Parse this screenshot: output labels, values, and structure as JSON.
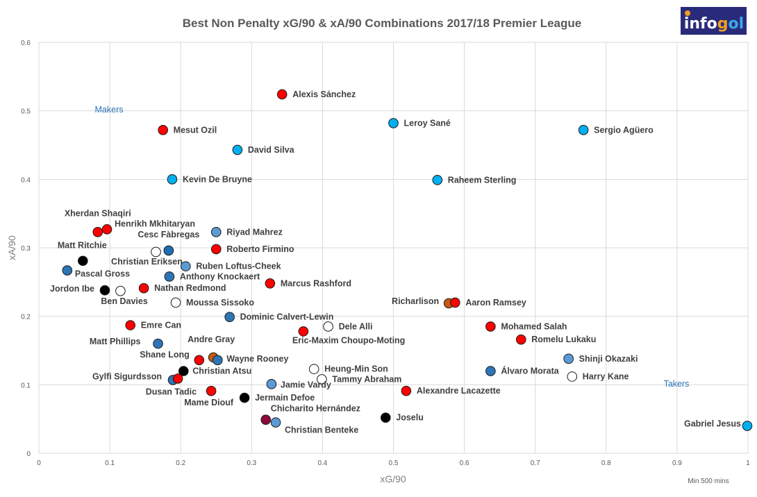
{
  "logo": {
    "text": "infogol",
    "bg": "#2a2a7a"
  },
  "chart_data": {
    "type": "scatter",
    "title": "Best Non Penalty xG/90 & xA/90 Combinations 2017/18 Premier League",
    "xlabel": "xG/90",
    "ylabel": "xA/90",
    "xlim": [
      0,
      1
    ],
    "ylim": [
      0,
      0.6
    ],
    "xticks": [
      "0",
      "0.1",
      "0.2",
      "0.3",
      "0.4",
      "0.5",
      "0.6",
      "0.7",
      "0.8",
      "0.9",
      "1"
    ],
    "yticks": [
      "0",
      "0.1",
      "0.2",
      "0.3",
      "0.4",
      "0.5",
      "0.6"
    ],
    "grid": true,
    "annotations": {
      "makers": "Makers",
      "takers": "Takers",
      "note": "Min 500 mins"
    },
    "points": [
      {
        "name": "Alexis Sánchez",
        "x": 0.343,
        "y": 0.524,
        "color": "#ff0000"
      },
      {
        "name": "Leroy Sané",
        "x": 0.5,
        "y": 0.482,
        "color": "#00b0f0"
      },
      {
        "name": "Sergio Agüero",
        "x": 0.768,
        "y": 0.472,
        "color": "#00b0f0"
      },
      {
        "name": "Mesut Ozil",
        "x": 0.175,
        "y": 0.472,
        "color": "#ff0000"
      },
      {
        "name": "David Silva",
        "x": 0.28,
        "y": 0.443,
        "color": "#00b0f0"
      },
      {
        "name": "Kevin De Bruyne",
        "x": 0.188,
        "y": 0.4,
        "color": "#00b0f0"
      },
      {
        "name": "Raheem Sterling",
        "x": 0.562,
        "y": 0.399,
        "color": "#00b0f0"
      },
      {
        "name": "Xherdan Shaqiri",
        "x": 0.083,
        "y": 0.323,
        "color": "#ff0000"
      },
      {
        "name": "Henrikh Mkhitaryan",
        "x": 0.096,
        "y": 0.327,
        "color": "#ff0000"
      },
      {
        "name": "Riyad Mahrez",
        "x": 0.25,
        "y": 0.323,
        "color": "#5b9bd5"
      },
      {
        "name": "Matt Ritchie",
        "x": 0.062,
        "y": 0.281,
        "color": "#000000"
      },
      {
        "name": "Cesc Fàbregas",
        "x": 0.183,
        "y": 0.296,
        "color": "#1f6cb5"
      },
      {
        "name": "Christian Eriksen",
        "x": 0.165,
        "y": 0.294,
        "color": "#ffffff"
      },
      {
        "name": "Roberto Firmino",
        "x": 0.25,
        "y": 0.298,
        "color": "#ff0000"
      },
      {
        "name": "Ruben Loftus-Cheek",
        "x": 0.207,
        "y": 0.273,
        "color": "#5b9bd5"
      },
      {
        "name": "Pascal Gross",
        "x": 0.04,
        "y": 0.267,
        "color": "#2e75b6"
      },
      {
        "name": "Anthony Knockaert",
        "x": 0.184,
        "y": 0.258,
        "color": "#2e75b6"
      },
      {
        "name": "Marcus Rashford",
        "x": 0.326,
        "y": 0.248,
        "color": "#ff0000"
      },
      {
        "name": "Jordon Ibe",
        "x": 0.093,
        "y": 0.238,
        "color": "#000000"
      },
      {
        "name": "Ben Davies",
        "x": 0.115,
        "y": 0.237,
        "color": "#ffffff"
      },
      {
        "name": "Nathan Redmond",
        "x": 0.148,
        "y": 0.241,
        "color": "#ff0000"
      },
      {
        "name": "Moussa Sissoko",
        "x": 0.193,
        "y": 0.22,
        "color": "#ffffff"
      },
      {
        "name": "Richarlison",
        "x": 0.578,
        "y": 0.219,
        "color": "#c55a11"
      },
      {
        "name": "Aaron Ramsey",
        "x": 0.587,
        "y": 0.22,
        "color": "#ff0000"
      },
      {
        "name": "Dominic Calvert-Lewin",
        "x": 0.269,
        "y": 0.199,
        "color": "#2e75b6"
      },
      {
        "name": "Emre Can",
        "x": 0.129,
        "y": 0.187,
        "color": "#ff0000"
      },
      {
        "name": "Dele Alli",
        "x": 0.408,
        "y": 0.185,
        "color": "#ffffff"
      },
      {
        "name": "Mohamed Salah",
        "x": 0.637,
        "y": 0.185,
        "color": "#ff0000"
      },
      {
        "name": "Eric-Maxim Choupo-Moting",
        "x": 0.373,
        "y": 0.178,
        "color": "#ff0000"
      },
      {
        "name": "Romelu Lukaku",
        "x": 0.68,
        "y": 0.166,
        "color": "#ff0000"
      },
      {
        "name": "Matt Phillips",
        "x": 0.168,
        "y": 0.16,
        "color": "#2e75b6"
      },
      {
        "name": "Andre Gray",
        "x": 0.246,
        "y": 0.14,
        "color": "#c55a11"
      },
      {
        "name": "Wayne Rooney",
        "x": 0.252,
        "y": 0.136,
        "color": "#2e75b6"
      },
      {
        "name": "Shane Long",
        "x": 0.226,
        "y": 0.136,
        "color": "#ff0000"
      },
      {
        "name": "Shinji Okazaki",
        "x": 0.747,
        "y": 0.138,
        "color": "#5b9bd5"
      },
      {
        "name": "Heung-Min Son",
        "x": 0.388,
        "y": 0.123,
        "color": "#ffffff"
      },
      {
        "name": "Álvaro Morata",
        "x": 0.637,
        "y": 0.12,
        "color": "#2e75b6"
      },
      {
        "name": "Christian Atsu",
        "x": 0.204,
        "y": 0.12,
        "color": "#000000"
      },
      {
        "name": "Harry Kane",
        "x": 0.752,
        "y": 0.112,
        "color": "#ffffff"
      },
      {
        "name": "Gylfi Sigurdsson",
        "x": 0.189,
        "y": 0.107,
        "color": "#2e75b6"
      },
      {
        "name": "Dusan Tadic",
        "x": 0.196,
        "y": 0.109,
        "color": "#ff0000"
      },
      {
        "name": "Tammy Abraham",
        "x": 0.399,
        "y": 0.108,
        "color": "#ffffff"
      },
      {
        "name": "Jamie Vardy",
        "x": 0.328,
        "y": 0.101,
        "color": "#5b9bd5"
      },
      {
        "name": "Alexandre Lacazette",
        "x": 0.518,
        "y": 0.091,
        "color": "#ff0000"
      },
      {
        "name": "Mame Diouf",
        "x": 0.243,
        "y": 0.091,
        "color": "#ff0000"
      },
      {
        "name": "Jermain Defoe",
        "x": 0.29,
        "y": 0.081,
        "color": "#000000"
      },
      {
        "name": "Joselu",
        "x": 0.489,
        "y": 0.052,
        "color": "#000000"
      },
      {
        "name": "Chicharito Hernández",
        "x": 0.32,
        "y": 0.049,
        "color": "#8b0a3a"
      },
      {
        "name": "Christian Benteke",
        "x": 0.334,
        "y": 0.045,
        "color": "#5b9bd5"
      },
      {
        "name": "Gabriel Jesus",
        "x": 0.999,
        "y": 0.04,
        "color": "#00b0f0"
      }
    ]
  }
}
